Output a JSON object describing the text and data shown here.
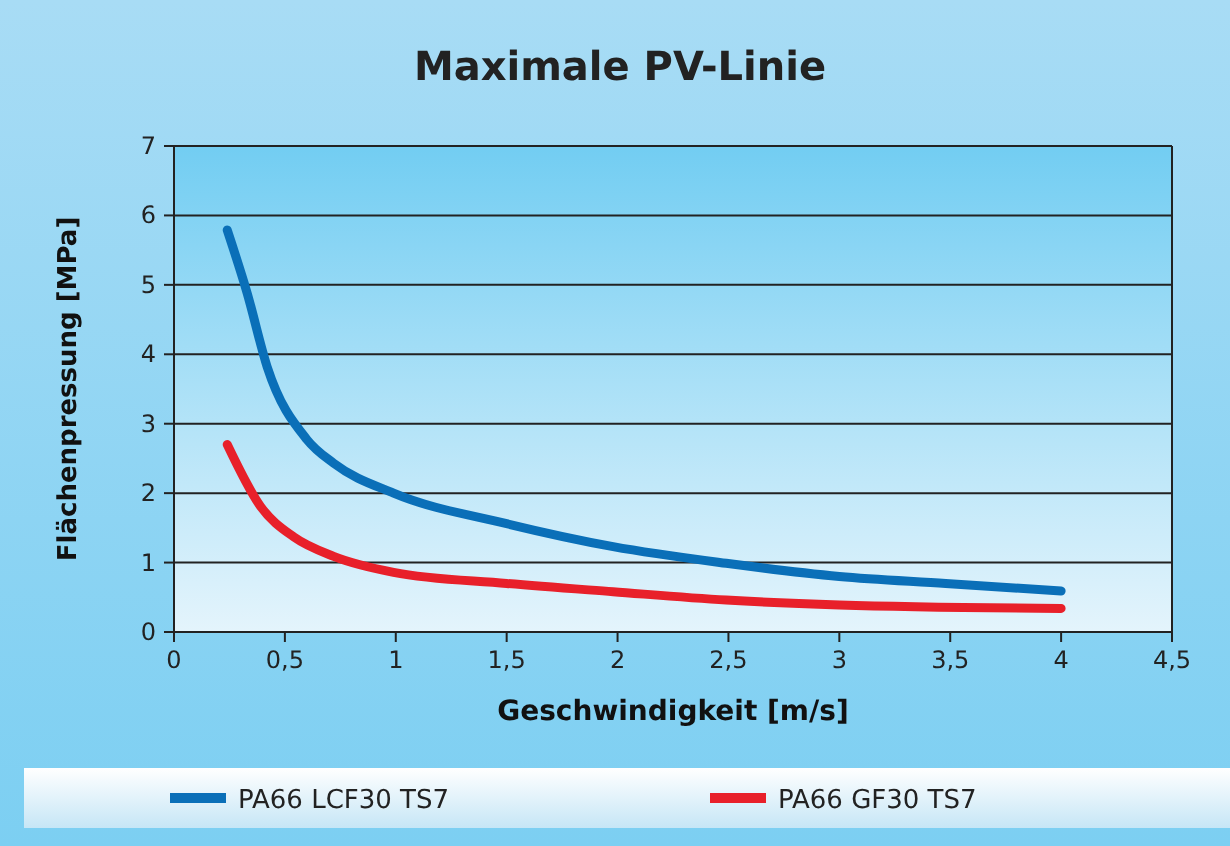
{
  "chart_data": {
    "type": "line",
    "title": "Maximale PV-Linie",
    "xlabel": "Geschwindigkeit [m/s]",
    "ylabel": "Flächenpressung [MPa]",
    "xlim": [
      0,
      4.5
    ],
    "xticks": [
      0,
      {
        "value": 0.5,
        "label": "0,5"
      },
      1,
      {
        "value": 1.5,
        "label": "1,5"
      },
      2,
      {
        "value": 2.5,
        "label": "2,5"
      },
      3,
      {
        "value": 3.5,
        "label": "3,5"
      },
      4,
      {
        "value": 4.5,
        "label": "4,5"
      }
    ],
    "ylim": [
      0,
      7
    ],
    "yticks": [
      0,
      1,
      2,
      3,
      4,
      5,
      6,
      7
    ],
    "grid": "y",
    "legend": "bottom",
    "line_style": "solid",
    "marker": "none",
    "series": [
      {
        "name": "PA66 LCF30 TS7",
        "color": "#0a6fb8",
        "x": [
          0.24,
          0.33,
          0.42,
          0.6,
          0.72,
          0.99,
          1.5,
          1.98,
          2.49,
          3.0,
          3.48,
          4.0
        ],
        "values": [
          5.79,
          4.88,
          3.82,
          2.77,
          2.43,
          2.0,
          1.56,
          1.23,
          0.99,
          0.8,
          0.7,
          0.59
        ]
      },
      {
        "name": "PA66 GF30 TS7",
        "color": "#e8202a",
        "x": [
          0.24,
          0.39,
          0.54,
          0.72,
          0.99,
          1.5,
          1.98,
          2.49,
          3.0,
          4.0
        ],
        "values": [
          2.7,
          1.81,
          1.37,
          1.09,
          0.86,
          0.7,
          0.58,
          0.46,
          0.39,
          0.34
        ]
      }
    ]
  }
}
